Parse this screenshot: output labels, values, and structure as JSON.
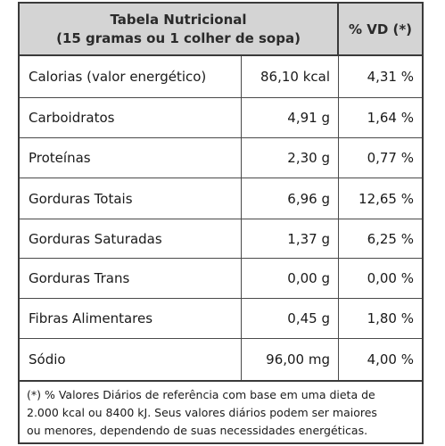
{
  "header": {
    "title_line1": "Tabela Nutricional",
    "title_line2": "(15 gramas ou 1 colher de sopa)",
    "vd_label": "% VD (*)"
  },
  "rows": [
    {
      "name": "Calorias (valor energético)",
      "amount": "86,10 kcal",
      "vd": "4,31 %"
    },
    {
      "name": "Carboidratos",
      "amount": "4,91 g",
      "vd": "1,64 %"
    },
    {
      "name": "Proteínas",
      "amount": "2,30 g",
      "vd": "0,77 %"
    },
    {
      "name": "Gorduras Totais",
      "amount": "6,96 g",
      "vd": "12,65 %"
    },
    {
      "name": "Gorduras Saturadas",
      "amount": "1,37 g",
      "vd": "6,25 %"
    },
    {
      "name": "Gorduras Trans",
      "amount": "0,00 g",
      "vd": "0,00 %"
    },
    {
      "name": "Fibras Alimentares",
      "amount": "0,45 g",
      "vd": "1,80 %"
    },
    {
      "name": "Sódio",
      "amount": "96,00 mg",
      "vd": "4,00 %"
    }
  ],
  "footnote": {
    "line1": "(*) % Valores Diários de referência com base em uma dieta de",
    "line2": "2.000 kcal ou 8400 kJ. Seus valores diários podem ser maiores",
    "line3": "ou menores, dependendo de suas necessidades energéticas."
  },
  "colors": {
    "header_bg": "#d4d4d4",
    "border": "#3a3a3a"
  }
}
